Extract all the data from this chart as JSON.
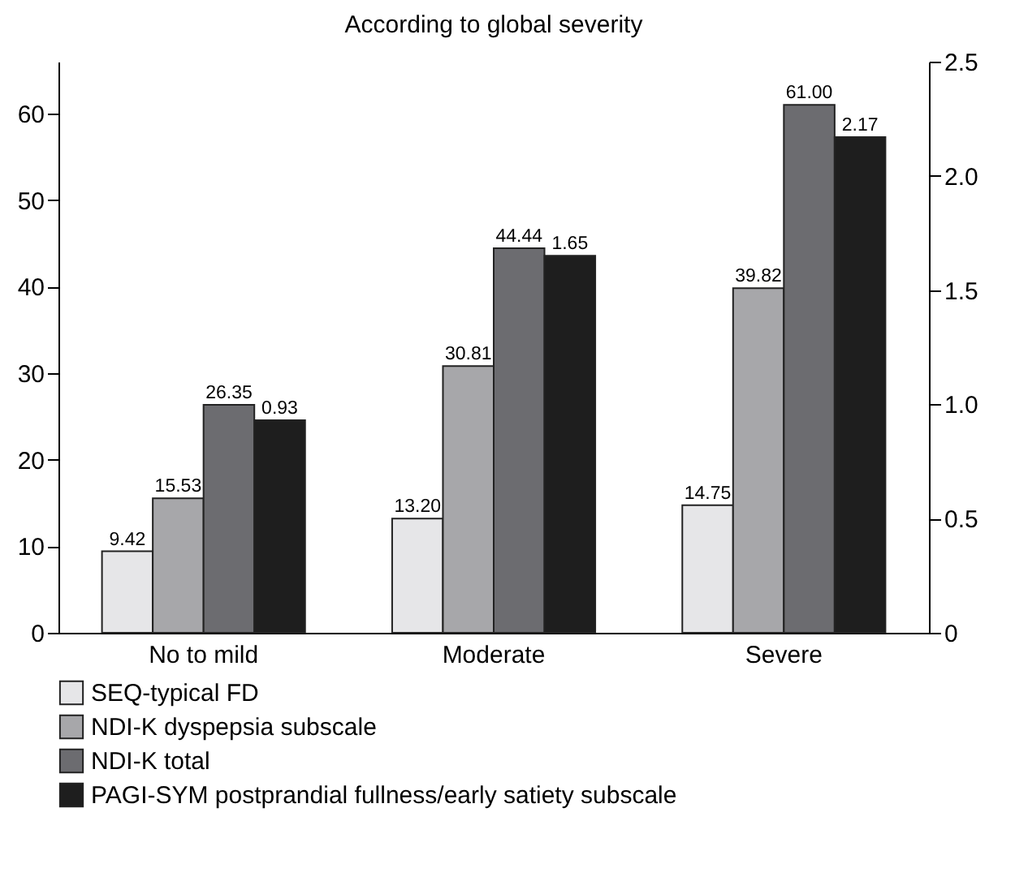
{
  "chart_data": {
    "type": "bar",
    "title": "According to global severity",
    "categories": [
      "No to mild",
      "Moderate",
      "Severe"
    ],
    "series": [
      {
        "name": "SEQ-typical FD",
        "color": "#e6e6e8",
        "values": [
          9.42,
          13.2,
          14.75
        ],
        "value_labels": [
          "9.42",
          "13.20",
          "14.75"
        ]
      },
      {
        "name": "NDI-K dyspepsia subscale",
        "color": "#a7a7aa",
        "values": [
          15.53,
          30.81,
          39.82
        ],
        "value_labels": [
          "15.53",
          "30.81",
          "39.82"
        ]
      },
      {
        "name": "NDI-K total",
        "color": "#6c6c70",
        "values": [
          26.35,
          44.44,
          61.0
        ],
        "value_labels": [
          "26.35",
          "44.44",
          "61.00"
        ]
      },
      {
        "name": "PAGI-SYM postprandial fullness/early satiety subscale",
        "color": "#1e1e1e",
        "values": [
          0.93,
          1.65,
          2.17
        ],
        "value_labels": [
          "0.93",
          "1.65",
          "2.17"
        ],
        "axis": "y2"
      }
    ],
    "ylim": [
      0,
      66
    ],
    "yticks": [
      0,
      10,
      20,
      30,
      40,
      50,
      60
    ],
    "y2lim": [
      0,
      2.5
    ],
    "y2ticks": [
      0,
      0.5,
      {
        "value": 1,
        "label": "1.0"
      },
      1.5,
      {
        "value": 2,
        "label": "2.0"
      },
      2.5
    ],
    "grid": false,
    "legend": "bottom"
  }
}
